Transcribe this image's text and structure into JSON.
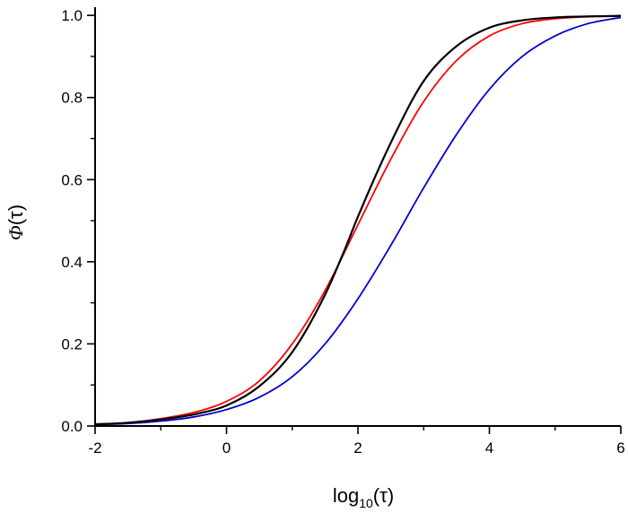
{
  "chart_data": {
    "type": "line",
    "title": "",
    "xlabel": {
      "prefix": "log",
      "subscript": "10",
      "suffix": "(τ)"
    },
    "ylabel": {
      "italic": "Φ",
      "suffix": "(τ)"
    },
    "xlim": [
      -2,
      6
    ],
    "ylim": [
      0,
      1.02
    ],
    "xticks": [
      -2,
      0,
      2,
      4,
      6
    ],
    "xtick_labels": [
      "-2",
      "0",
      "2",
      "4",
      "6"
    ],
    "yticks": [
      0.0,
      0.2,
      0.4,
      0.6,
      0.8,
      1.0
    ],
    "ytick_labels": [
      "0.0",
      "0.2",
      "0.4",
      "0.6",
      "0.8",
      "1.0"
    ],
    "grid": false,
    "legend": "none",
    "series": [
      {
        "color": "#000000",
        "x": [
          -2.0,
          -1.5,
          -1.0,
          -0.5,
          0.0,
          0.5,
          1.0,
          1.5,
          1.8,
          2.0,
          2.5,
          3.0,
          3.5,
          4.0,
          4.5,
          5.0,
          6.0
        ],
        "y": [
          0.004,
          0.008,
          0.016,
          0.028,
          0.05,
          0.097,
          0.18,
          0.32,
          0.43,
          0.51,
          0.69,
          0.84,
          0.925,
          0.97,
          0.988,
          0.995,
          0.999
        ]
      },
      {
        "color": "#ff0000",
        "x": [
          -2.0,
          -1.5,
          -1.0,
          -0.5,
          0.0,
          0.5,
          1.0,
          1.5,
          2.0,
          2.5,
          3.0,
          3.5,
          4.0,
          4.5,
          5.0,
          6.0
        ],
        "y": [
          0.004,
          0.008,
          0.018,
          0.033,
          0.06,
          0.11,
          0.2,
          0.33,
          0.49,
          0.65,
          0.79,
          0.89,
          0.95,
          0.98,
          0.992,
          0.999
        ]
      },
      {
        "color": "#0000cc",
        "x": [
          -2.0,
          -1.5,
          -1.0,
          -0.5,
          0.0,
          0.5,
          1.0,
          1.5,
          2.0,
          2.5,
          3.0,
          3.5,
          4.0,
          4.5,
          5.0,
          5.5,
          6.0
        ],
        "y": [
          0.003,
          0.006,
          0.012,
          0.022,
          0.04,
          0.07,
          0.12,
          0.2,
          0.31,
          0.44,
          0.58,
          0.71,
          0.82,
          0.9,
          0.95,
          0.98,
          0.995
        ]
      }
    ]
  }
}
